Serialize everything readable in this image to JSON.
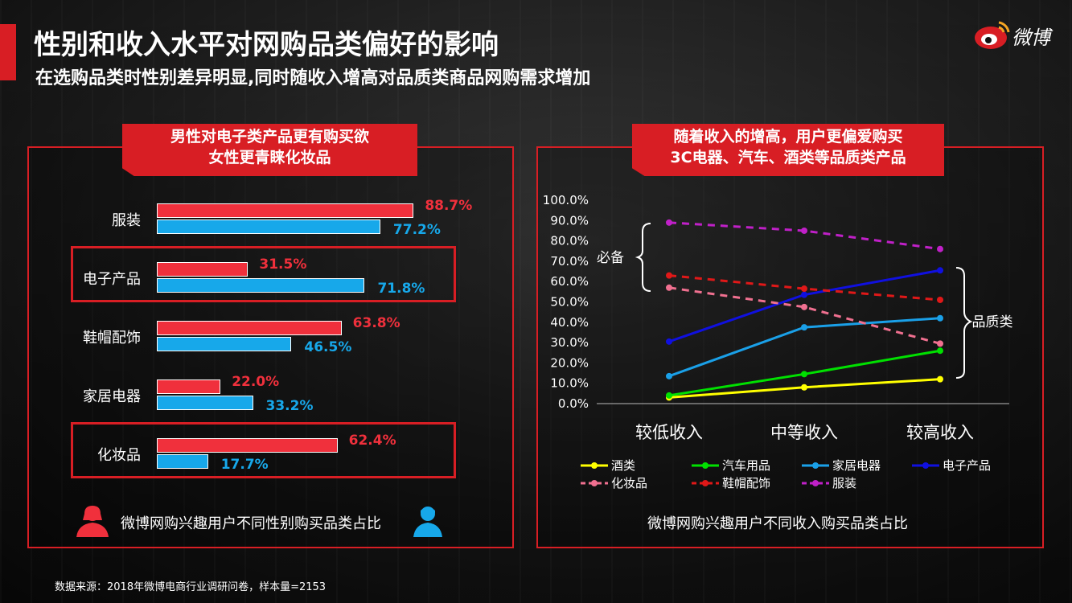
{
  "header": {
    "title": "性别和收入水平对网购品类偏好的影响",
    "subtitle": "在选购品类时性别差异明显,同时随收入增高对品质类商品网购需求增加",
    "brand": "微博"
  },
  "left_panel": {
    "banner_line1": "男性对电子类产品更有购买欲",
    "banner_line2": "女性更青睐化妆品",
    "caption": "微博网购兴趣用户不同性别购买品类占比"
  },
  "right_panel": {
    "banner_line1": "随着收入的增高，用户更偏爱购买",
    "banner_line2": "3C电器、汽车、酒类等品质类产品",
    "caption": "微博网购兴趣用户不同收入购买品类占比",
    "brace_label_left": "必备",
    "brace_label_right": "品质类"
  },
  "source": "数据来源：2018年微博电商行业调研问卷，样本量=2153",
  "colors": {
    "accent": "#d81e24",
    "female": "#f0303c",
    "male": "#17a8ea"
  },
  "icons": {
    "female": "female-user-icon",
    "male": "male-user-icon",
    "brand": "weibo-eye-icon"
  },
  "chart_data": [
    {
      "type": "bar",
      "orientation": "horizontal",
      "categories": [
        "服装",
        "电子产品",
        "鞋帽配饰",
        "家居电器",
        "化妆品"
      ],
      "series": [
        {
          "values": [
            88.7,
            31.5,
            63.8,
            22.0,
            62.4
          ],
          "labels": [
            "88.7%",
            "31.5%",
            "63.8%",
            "22.0%",
            "62.4%"
          ],
          "color": "#f0303c"
        },
        {
          "values": [
            77.2,
            71.8,
            46.5,
            33.2,
            17.7
          ],
          "labels": [
            "77.2%",
            "71.8%",
            "46.5%",
            "33.2%",
            "17.7%"
          ],
          "color": "#17a8ea"
        }
      ],
      "highlighted": [
        "电子产品",
        "化妆品"
      ]
    },
    {
      "type": "line",
      "categories": [
        "较低收入",
        "中等收入",
        "较高收入"
      ],
      "ylim": [
        0,
        100
      ],
      "y_ticks": [
        "0.0%",
        "10.0%",
        "20.0%",
        "30.0%",
        "40.0%",
        "50.0%",
        "60.0%",
        "70.0%",
        "80.0%",
        "90.0%",
        "100.0%"
      ],
      "legend_position": "bottom",
      "series": [
        {
          "name": "酒类",
          "values": [
            3,
            8,
            12
          ],
          "color": "#ffff00",
          "dashed": false
        },
        {
          "name": "汽车用品",
          "values": [
            4,
            14.5,
            26
          ],
          "color": "#00e000",
          "dashed": false
        },
        {
          "name": "家居电器",
          "values": [
            13.5,
            37.5,
            42
          ],
          "color": "#1aa0e8",
          "dashed": false
        },
        {
          "name": "电子产品",
          "values": [
            30.5,
            53.5,
            65.5
          ],
          "color": "#1010e0",
          "dashed": false
        },
        {
          "name": "化妆品",
          "values": [
            57,
            47.5,
            29.5
          ],
          "color": "#f07090",
          "dashed": true
        },
        {
          "name": "鞋帽配饰",
          "values": [
            63,
            56.5,
            51
          ],
          "color": "#e01818",
          "dashed": true
        },
        {
          "name": "服装",
          "values": [
            89,
            85,
            76
          ],
          "color": "#c020c8",
          "dashed": true
        }
      ]
    }
  ]
}
